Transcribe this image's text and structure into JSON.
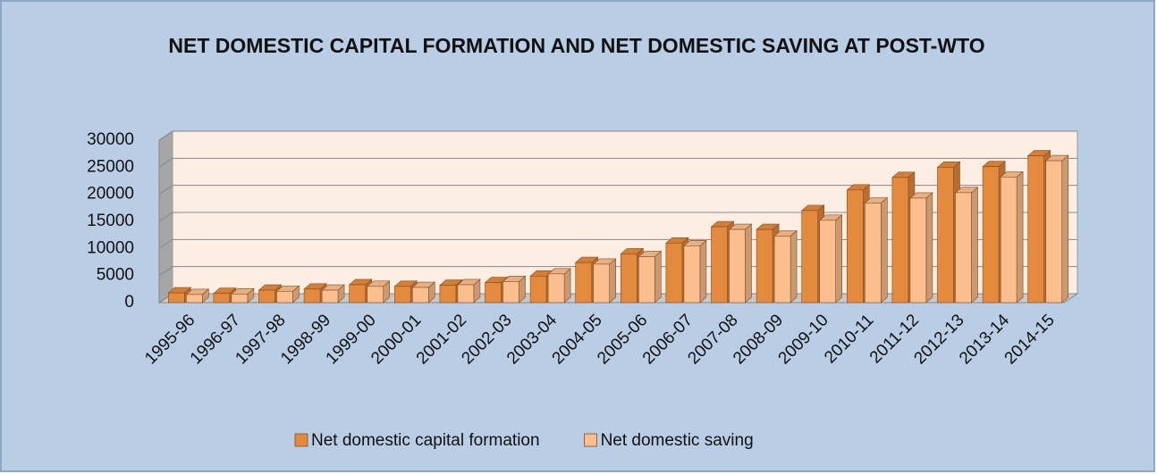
{
  "chart_data": {
    "type": "bar3d",
    "title": "NET DOMESTIC CAPITAL FORMATION AND NET DOMESTIC SAVING AT POST-WTO",
    "categories": [
      "1995-96",
      "1996-97",
      "1997-98",
      "1998-99",
      "1999-00",
      "2000-01",
      "2001-02",
      "2002-03",
      "2003-04",
      "2004-05",
      "2005-06",
      "2006-07",
      "2007-08",
      "2008-09",
      "2009-10",
      "2010-11",
      "2011-12",
      "2012-13",
      "2013-14",
      "2014-15"
    ],
    "series": [
      {
        "name": "Net domestic capital formation",
        "color": "#e38a3e",
        "values": [
          1800,
          1700,
          2300,
          2500,
          3300,
          3000,
          3200,
          3700,
          4900,
          7400,
          9000,
          11000,
          14000,
          13500,
          17000,
          20800,
          23100,
          25000,
          25100,
          27100
        ]
      },
      {
        "name": "Net domestic saving",
        "color": "#fbbf8f",
        "values": [
          1500,
          1600,
          2100,
          2300,
          3000,
          2800,
          3300,
          3900,
          5300,
          7100,
          8500,
          10500,
          13500,
          12300,
          15200,
          18400,
          19300,
          20300,
          23200,
          26200
        ]
      }
    ],
    "ylim": [
      0,
      30000
    ],
    "yticks": [
      0,
      5000,
      10000,
      15000,
      20000,
      25000,
      30000
    ],
    "grid": true,
    "legend": "bottom"
  }
}
